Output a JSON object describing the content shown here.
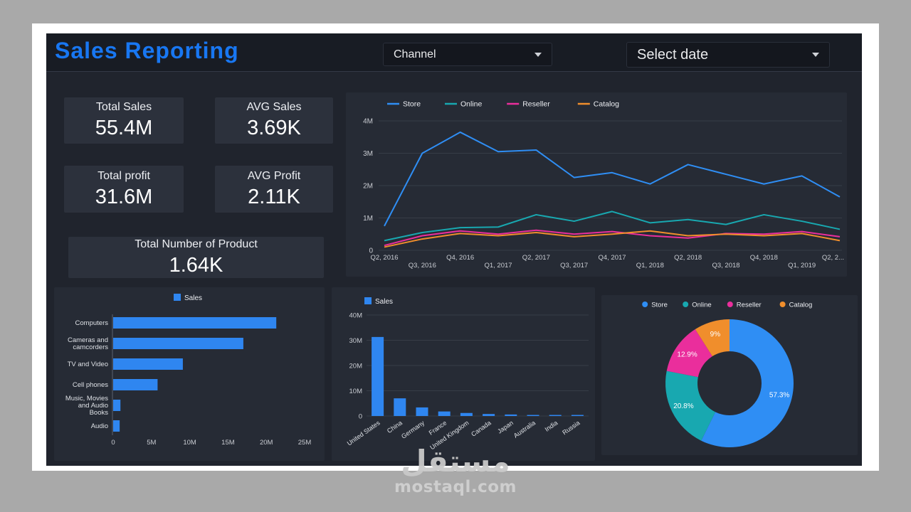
{
  "app": {
    "title": "Sales Reporting"
  },
  "header": {
    "channel_dropdown": "Channel",
    "date_dropdown": "Select date"
  },
  "kpis": [
    {
      "label": "Total Sales",
      "value": "55.4M"
    },
    {
      "label": "AVG Sales",
      "value": "3.69K"
    },
    {
      "label": "Total profit",
      "value": "31.6M"
    },
    {
      "label": "AVG Profit",
      "value": "2.11K"
    },
    {
      "label": "Total Number of Product",
      "value": "1.64K"
    }
  ],
  "colors": {
    "accent": "#1877f2",
    "store": "#2f8ef4",
    "online": "#18a8b0",
    "reseller": "#ea2e9c",
    "catalog": "#f08e2c",
    "bar": "#2f86f0"
  },
  "watermark": {
    "arabic": "مستقل",
    "url": "mostaql.com"
  },
  "chart_data": [
    {
      "id": "sales-by-quarter",
      "type": "line",
      "x": [
        "Q2, 2016",
        "Q3, 2016",
        "Q4, 2016",
        "Q1, 2017",
        "Q2, 2017",
        "Q3, 2017",
        "Q4, 2017",
        "Q1, 2018",
        "Q2, 2018",
        "Q3, 2018",
        "Q4, 2018",
        "Q1, 2019",
        "Q2, 2..."
      ],
      "unit": "M",
      "ylim": [
        0,
        4
      ],
      "y_ticks": [
        "0",
        "1M",
        "2M",
        "3M",
        "4M"
      ],
      "legend_position": "top",
      "grid": true,
      "series": [
        {
          "name": "Store",
          "color_key": "store",
          "values": [
            0.75,
            3.0,
            3.65,
            3.05,
            3.1,
            2.25,
            2.4,
            2.05,
            2.65,
            2.35,
            2.05,
            2.3,
            1.65
          ]
        },
        {
          "name": "Online",
          "color_key": "online",
          "values": [
            0.3,
            0.55,
            0.7,
            0.72,
            1.1,
            0.9,
            1.2,
            0.85,
            0.95,
            0.8,
            1.1,
            0.9,
            0.65
          ]
        },
        {
          "name": "Reseller",
          "color_key": "reseller",
          "values": [
            0.15,
            0.45,
            0.6,
            0.5,
            0.62,
            0.5,
            0.58,
            0.45,
            0.38,
            0.52,
            0.5,
            0.58,
            0.42
          ]
        },
        {
          "name": "Catalog",
          "color_key": "catalog",
          "values": [
            0.1,
            0.35,
            0.52,
            0.45,
            0.55,
            0.42,
            0.5,
            0.6,
            0.45,
            0.5,
            0.45,
            0.52,
            0.3
          ]
        }
      ]
    },
    {
      "id": "sales-by-category",
      "type": "bar",
      "orientation": "horizontal",
      "legend": "Sales",
      "categories": [
        "Computers",
        "Cameras and camcorders",
        "TV and Video",
        "Cell phones",
        "Music, Movies and Audio Books",
        "Audio"
      ],
      "values": [
        21.3,
        17.0,
        9.1,
        5.8,
        0.95,
        0.85
      ],
      "unit": "M",
      "xlim": [
        0,
        25
      ],
      "x_ticks": [
        "0",
        "5M",
        "10M",
        "15M",
        "20M",
        "25M"
      ]
    },
    {
      "id": "sales-by-country",
      "type": "bar",
      "orientation": "vertical",
      "legend": "Sales",
      "categories": [
        "United States",
        "China",
        "Germany",
        "France",
        "United Kingdom",
        "Canada",
        "Japan",
        "Australia",
        "India",
        "Russia"
      ],
      "values": [
        31.3,
        7.0,
        3.4,
        1.8,
        1.2,
        0.8,
        0.6,
        0.4,
        0.3,
        0.25
      ],
      "unit": "M",
      "ylim": [
        0,
        40
      ],
      "y_ticks": [
        "0",
        "10M",
        "20M",
        "30M",
        "40M"
      ]
    },
    {
      "id": "sales-by-channel",
      "type": "pie",
      "donut": true,
      "legend_position": "top",
      "slices": [
        {
          "name": "Store",
          "percent": 57.3,
          "color_key": "store"
        },
        {
          "name": "Online",
          "percent": 20.8,
          "color_key": "online"
        },
        {
          "name": "Reseller",
          "percent": 12.9,
          "color_key": "reseller"
        },
        {
          "name": "Catalog",
          "percent": 9.0,
          "color_key": "catalog"
        }
      ],
      "labels": [
        "57.3%",
        "20.8%",
        "12.9%",
        "9%"
      ]
    }
  ]
}
